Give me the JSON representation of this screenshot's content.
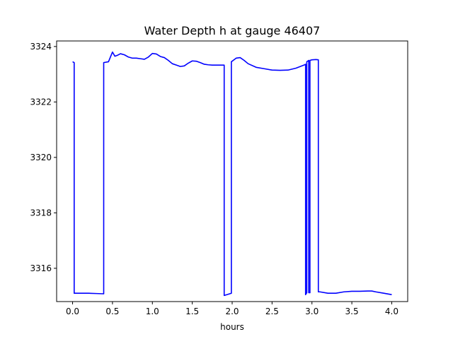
{
  "chart_data": {
    "type": "line",
    "title": "Water Depth h at gauge 46407",
    "xlabel": "hours",
    "ylabel": "",
    "xlim": [
      -0.2,
      4.2
    ],
    "ylim": [
      3314.8,
      3324.2
    ],
    "xticks": [
      0.0,
      0.5,
      1.0,
      1.5,
      2.0,
      2.5,
      3.0,
      3.5,
      4.0
    ],
    "xtick_labels": [
      "0.0",
      "0.5",
      "1.0",
      "1.5",
      "2.0",
      "2.5",
      "3.0",
      "3.5",
      "4.0"
    ],
    "yticks": [
      3316,
      3318,
      3320,
      3322,
      3324
    ],
    "ytick_labels": [
      "3316",
      "3318",
      "3320",
      "3322",
      "3324"
    ],
    "grid": false,
    "series": [
      {
        "color": "#0000ff",
        "x": [
          0.0,
          0.02,
          0.02,
          0.1,
          0.2,
          0.3,
          0.39,
          0.39,
          0.45,
          0.5,
          0.53,
          0.56,
          0.6,
          0.65,
          0.7,
          0.75,
          0.8,
          0.85,
          0.9,
          0.95,
          1.0,
          1.05,
          1.1,
          1.15,
          1.2,
          1.25,
          1.3,
          1.35,
          1.4,
          1.45,
          1.5,
          1.55,
          1.6,
          1.65,
          1.7,
          1.75,
          1.8,
          1.85,
          1.9,
          1.9,
          1.99,
          1.99,
          2.05,
          2.1,
          2.15,
          2.2,
          2.3,
          2.4,
          2.5,
          2.6,
          2.7,
          2.8,
          2.9,
          2.92,
          2.92,
          2.935,
          2.935,
          2.96,
          2.96,
          2.975,
          2.975,
          3.0,
          3.05,
          3.08,
          3.08,
          3.1,
          3.2,
          3.3,
          3.4,
          3.5,
          3.6,
          3.7,
          3.75,
          3.8,
          3.9,
          4.0
        ],
        "y": [
          3323.45,
          3323.42,
          3315.1,
          3315.1,
          3315.1,
          3315.09,
          3315.08,
          3323.42,
          3323.45,
          3323.8,
          3323.65,
          3323.68,
          3323.74,
          3323.7,
          3323.62,
          3323.58,
          3323.58,
          3323.56,
          3323.54,
          3323.62,
          3323.75,
          3323.73,
          3323.64,
          3323.6,
          3323.5,
          3323.38,
          3323.33,
          3323.28,
          3323.3,
          3323.4,
          3323.48,
          3323.47,
          3323.42,
          3323.36,
          3323.34,
          3323.33,
          3323.33,
          3323.33,
          3323.33,
          3315.02,
          3315.1,
          3323.45,
          3323.58,
          3323.6,
          3323.5,
          3323.38,
          3323.25,
          3323.2,
          3323.15,
          3323.14,
          3323.15,
          3323.22,
          3323.33,
          3323.36,
          3315.05,
          3315.12,
          3323.45,
          3323.5,
          3315.12,
          3315.12,
          3323.5,
          3323.52,
          3323.53,
          3323.52,
          3315.15,
          3315.15,
          3315.1,
          3315.1,
          3315.15,
          3315.17,
          3315.17,
          3315.18,
          3315.18,
          3315.15,
          3315.1,
          3315.05
        ]
      }
    ]
  }
}
